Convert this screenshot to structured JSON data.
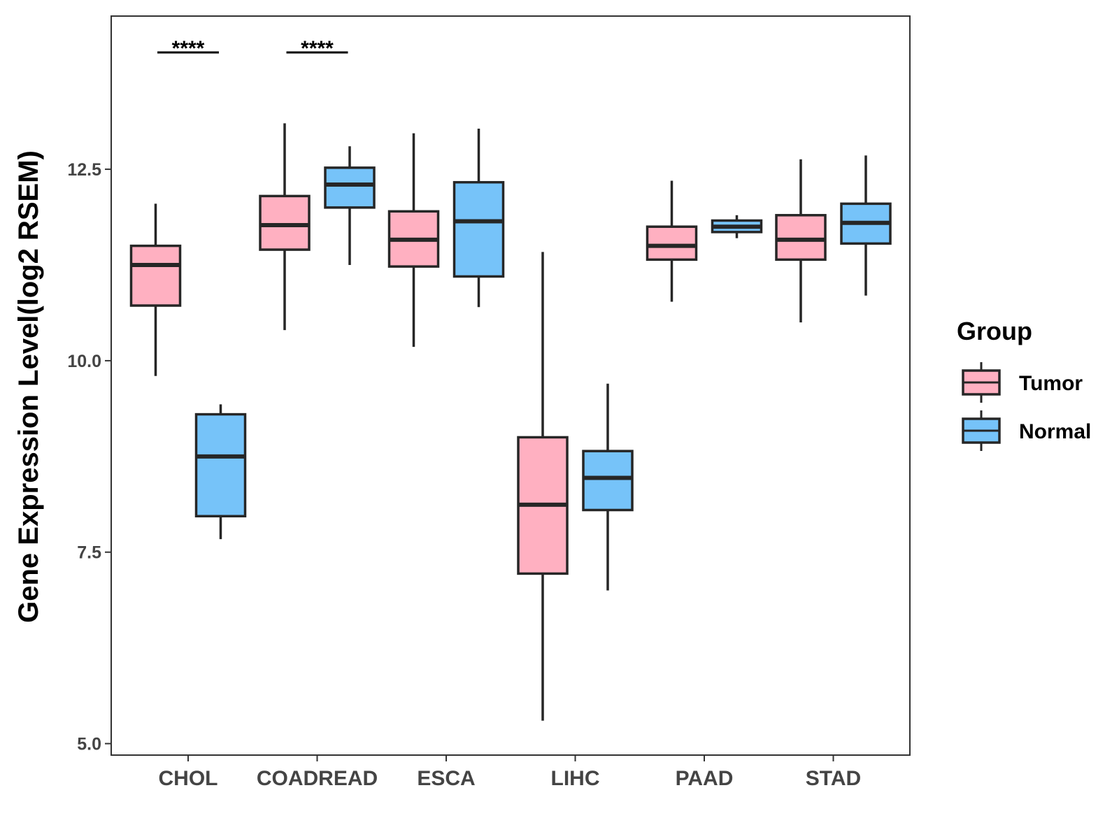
{
  "chart_data": {
    "type": "boxplot",
    "title": "",
    "xlabel": "",
    "ylabel": "Gene Expression Level(log2 RSEM)",
    "ylim": [
      4.85,
      14.5
    ],
    "yticks": [
      5.0,
      7.5,
      10.0,
      12.5
    ],
    "ytick_labels": [
      "5.0",
      "7.5",
      "10.0",
      "12.5"
    ],
    "categories": [
      "CHOL",
      "COADREAD",
      "ESCA",
      "LIHC",
      "PAAD",
      "STAD"
    ],
    "grid": false,
    "legend": {
      "title": "Group",
      "position": "right",
      "entries": [
        {
          "name": "Tumor",
          "color": "#FFB0C1"
        },
        {
          "name": "Normal",
          "color": "#76C3F9"
        }
      ]
    },
    "series": [
      {
        "name": "Tumor",
        "color": "#FFB0C1",
        "boxes": [
          {
            "category": "CHOL",
            "whisker_low": 9.8,
            "q1": 10.72,
            "median": 11.25,
            "q3": 11.5,
            "whisker_high": 12.05
          },
          {
            "category": "COADREAD",
            "whisker_low": 10.4,
            "q1": 11.45,
            "median": 11.77,
            "q3": 12.15,
            "whisker_high": 13.1
          },
          {
            "category": "ESCA",
            "whisker_low": 10.18,
            "q1": 11.23,
            "median": 11.58,
            "q3": 11.95,
            "whisker_high": 12.97
          },
          {
            "category": "LIHC",
            "whisker_low": 5.3,
            "q1": 7.22,
            "median": 8.12,
            "q3": 9.0,
            "whisker_high": 11.42
          },
          {
            "category": "PAAD",
            "whisker_low": 10.77,
            "q1": 11.32,
            "median": 11.5,
            "q3": 11.75,
            "whisker_high": 12.35
          },
          {
            "category": "STAD",
            "whisker_low": 10.5,
            "q1": 11.32,
            "median": 11.58,
            "q3": 11.9,
            "whisker_high": 12.63
          }
        ]
      },
      {
        "name": "Normal",
        "color": "#76C3F9",
        "boxes": [
          {
            "category": "CHOL",
            "whisker_low": 7.67,
            "q1": 7.97,
            "median": 8.75,
            "q3": 9.3,
            "whisker_high": 9.43
          },
          {
            "category": "COADREAD",
            "whisker_low": 11.25,
            "q1": 12.0,
            "median": 12.3,
            "q3": 12.52,
            "whisker_high": 12.8
          },
          {
            "category": "ESCA",
            "whisker_low": 10.7,
            "q1": 11.1,
            "median": 11.82,
            "q3": 12.33,
            "whisker_high": 13.03
          },
          {
            "category": "LIHC",
            "whisker_low": 7.0,
            "q1": 8.05,
            "median": 8.47,
            "q3": 8.82,
            "whisker_high": 9.7
          },
          {
            "category": "PAAD",
            "whisker_low": 11.6,
            "q1": 11.68,
            "median": 11.75,
            "q3": 11.83,
            "whisker_high": 11.9
          },
          {
            "category": "STAD",
            "whisker_low": 10.85,
            "q1": 11.53,
            "median": 11.8,
            "q3": 12.05,
            "whisker_high": 12.68
          }
        ]
      }
    ],
    "annotations": [
      {
        "category": "CHOL",
        "text": "****"
      },
      {
        "category": "COADREAD",
        "text": "****"
      }
    ]
  }
}
